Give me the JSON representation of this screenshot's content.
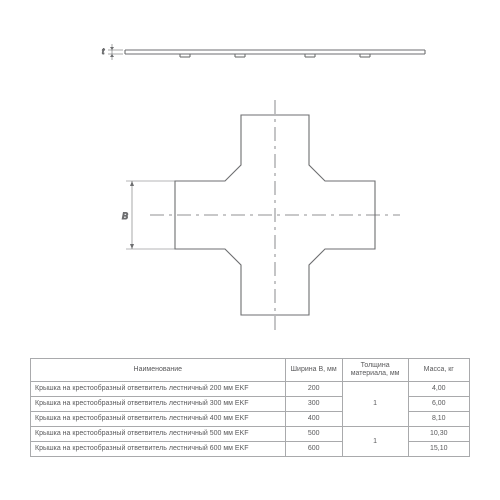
{
  "diagram": {
    "type": "engineering-outline",
    "stroke": "#6d6e70",
    "dash_stroke": "#6d6e70",
    "bg": "#ffffff",
    "labels": {
      "width": "B",
      "depth": "t"
    }
  },
  "table": {
    "columns": [
      {
        "key": "name",
        "label": "Наименование",
        "width_pct": 58,
        "align": "left"
      },
      {
        "key": "width",
        "label": "Ширина B,\nмм",
        "width_pct": 13,
        "align": "center"
      },
      {
        "key": "thick",
        "label": "Толщина\nматериала,\nмм",
        "width_pct": 15,
        "align": "center"
      },
      {
        "key": "mass",
        "label": "Масса, кг",
        "width_pct": 14,
        "align": "center"
      }
    ],
    "thickness_groups": [
      {
        "value": "1",
        "rowspan": 3
      },
      {
        "value": "1",
        "rowspan": 2
      }
    ],
    "rows": [
      {
        "name": "Крышка на крестообразный ответвитель лестничный 200 мм EKF",
        "width": "200",
        "mass": "4,00"
      },
      {
        "name": "Крышка на крестообразный ответвитель лестничный 300 мм EKF",
        "width": "300",
        "mass": "6,00"
      },
      {
        "name": "Крышка на крестообразный ответвитель лестничный 400 мм EKF",
        "width": "400",
        "mass": "8,10"
      },
      {
        "name": "Крышка на крестообразный ответвитель лестничный 500 мм EKF",
        "width": "500",
        "mass": "10,30"
      },
      {
        "name": "Крышка на крестообразный ответвитель лестничный 600 мм EKF",
        "width": "600",
        "mass": "15,10"
      }
    ],
    "border_color": "#a9aaac",
    "text_color": "#59595b",
    "font_size_pt": 7
  }
}
